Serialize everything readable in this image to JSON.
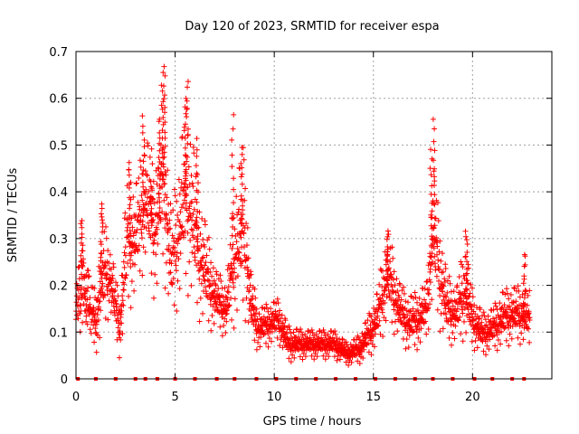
{
  "chart_data": {
    "type": "scatter",
    "title": "Day 120 of 2023, SRMTID for receiver espa",
    "xlabel": "GPS time / hours",
    "ylabel": "SRMTID / TECUs",
    "xlim": [
      0,
      24
    ],
    "ylim": [
      0,
      0.7
    ],
    "xticks": [
      0,
      5,
      10,
      15,
      20
    ],
    "yticks": [
      0,
      0.1,
      0.2,
      0.3,
      0.4,
      0.5,
      0.6,
      0.7
    ],
    "grid": true,
    "marker": "+",
    "color": "#ff0000",
    "profile": [
      [
        0.0,
        0.16,
        0.05
      ],
      [
        0.3,
        0.22,
        0.08
      ],
      [
        0.6,
        0.17,
        0.05
      ],
      [
        1.0,
        0.11,
        0.04
      ],
      [
        1.3,
        0.2,
        0.09
      ],
      [
        1.7,
        0.21,
        0.05
      ],
      [
        2.2,
        0.1,
        0.04
      ],
      [
        2.6,
        0.28,
        0.1
      ],
      [
        3.0,
        0.28,
        0.08
      ],
      [
        3.5,
        0.37,
        0.09
      ],
      [
        4.0,
        0.3,
        0.1
      ],
      [
        4.4,
        0.42,
        0.14
      ],
      [
        4.8,
        0.22,
        0.08
      ],
      [
        5.2,
        0.3,
        0.1
      ],
      [
        5.6,
        0.38,
        0.14
      ],
      [
        6.1,
        0.27,
        0.1
      ],
      [
        6.6,
        0.2,
        0.07
      ],
      [
        7.1,
        0.16,
        0.04
      ],
      [
        7.6,
        0.14,
        0.04
      ],
      [
        8.0,
        0.25,
        0.1
      ],
      [
        8.5,
        0.3,
        0.12
      ],
      [
        8.8,
        0.15,
        0.05
      ],
      [
        9.2,
        0.1,
        0.03
      ],
      [
        9.7,
        0.11,
        0.03
      ],
      [
        10.2,
        0.12,
        0.03
      ],
      [
        10.7,
        0.07,
        0.025
      ],
      [
        11.5,
        0.07,
        0.02
      ],
      [
        12.3,
        0.07,
        0.02
      ],
      [
        13.0,
        0.07,
        0.02
      ],
      [
        13.7,
        0.05,
        0.015
      ],
      [
        14.3,
        0.06,
        0.02
      ],
      [
        14.8,
        0.09,
        0.03
      ],
      [
        15.2,
        0.12,
        0.04
      ],
      [
        15.7,
        0.21,
        0.07
      ],
      [
        16.3,
        0.14,
        0.04
      ],
      [
        16.8,
        0.11,
        0.04
      ],
      [
        17.3,
        0.12,
        0.04
      ],
      [
        17.7,
        0.14,
        0.04
      ],
      [
        18.0,
        0.3,
        0.1
      ],
      [
        18.3,
        0.22,
        0.08
      ],
      [
        18.7,
        0.14,
        0.05
      ],
      [
        19.2,
        0.13,
        0.04
      ],
      [
        19.6,
        0.18,
        0.07
      ],
      [
        20.0,
        0.12,
        0.04
      ],
      [
        20.5,
        0.09,
        0.03
      ],
      [
        21.0,
        0.1,
        0.03
      ],
      [
        21.5,
        0.12,
        0.04
      ],
      [
        22.0,
        0.13,
        0.04
      ],
      [
        22.5,
        0.13,
        0.04
      ],
      [
        22.8,
        0.12,
        0.04
      ]
    ],
    "peaks": [
      [
        0.28,
        0.34
      ],
      [
        1.3,
        0.38
      ],
      [
        2.7,
        0.46
      ],
      [
        3.4,
        0.56
      ],
      [
        3.8,
        0.42
      ],
      [
        4.2,
        0.53
      ],
      [
        4.35,
        0.63
      ],
      [
        4.45,
        0.67
      ],
      [
        5.5,
        0.58
      ],
      [
        5.6,
        0.64
      ],
      [
        6.1,
        0.51
      ],
      [
        7.9,
        0.56
      ],
      [
        8.35,
        0.49
      ],
      [
        15.7,
        0.3
      ],
      [
        17.9,
        0.49
      ],
      [
        18.05,
        0.55
      ],
      [
        19.7,
        0.32
      ],
      [
        22.6,
        0.27
      ]
    ],
    "zero_line_x": [
      0.1,
      1.0,
      2.0,
      3.0,
      3.5,
      4.1,
      5.0,
      6.0,
      7.1,
      8.0,
      9.1,
      10.1,
      11.1,
      12.1,
      13.1,
      14.1,
      15.1,
      16.1,
      17.1,
      18.0,
      19.0,
      20.1,
      21.0,
      22.0,
      22.6
    ]
  }
}
